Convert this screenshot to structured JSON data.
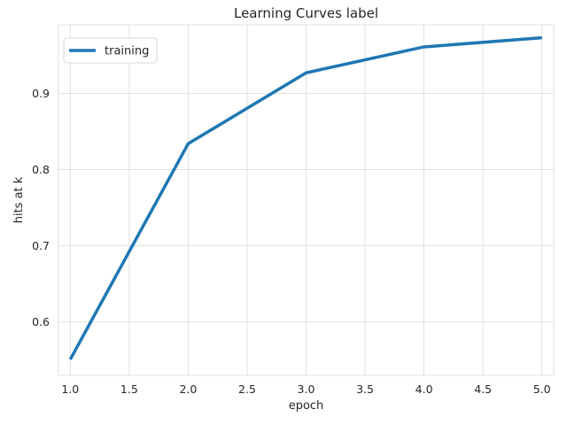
{
  "chart_data": {
    "type": "line",
    "title": "Learning Curves label",
    "xlabel": "epoch",
    "ylabel": "hits at k",
    "xlim": [
      0.9,
      5.1
    ],
    "ylim": [
      0.53,
      0.99
    ],
    "xticks": [
      1.0,
      1.5,
      2.0,
      2.5,
      3.0,
      3.5,
      4.0,
      4.5,
      5.0
    ],
    "xtick_labels": [
      "1.0",
      "1.5",
      "2.0",
      "2.5",
      "3.0",
      "3.5",
      "4.0",
      "4.5",
      "5.0"
    ],
    "yticks": [
      0.6,
      0.7,
      0.8,
      0.9
    ],
    "ytick_labels": [
      "0.6",
      "0.7",
      "0.8",
      "0.9"
    ],
    "grid": true,
    "legend": "upper-left",
    "series": [
      {
        "name": "training",
        "color": "#1f77b4",
        "x": [
          1,
          2,
          3,
          4,
          5
        ],
        "y": [
          0.551,
          0.834,
          0.927,
          0.961,
          0.973
        ]
      }
    ]
  }
}
